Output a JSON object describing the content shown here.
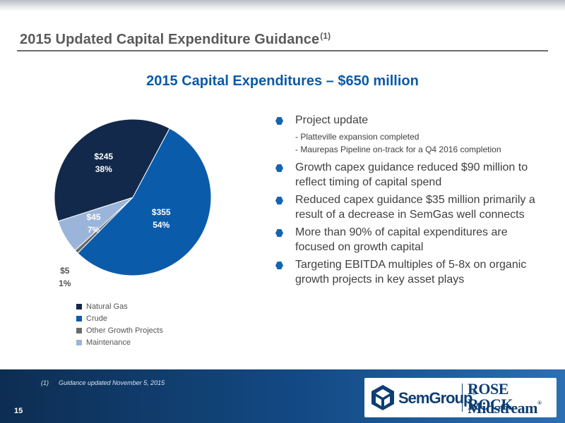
{
  "slide": {
    "title": "2015 Updated Capital Expenditure Guidance",
    "title_footnote_ref": "(1)",
    "subtitle": "2015 Capital Expenditures – $650 million",
    "page_number": "15"
  },
  "chart_data": {
    "type": "pie",
    "slices": [
      {
        "name": "Crude",
        "amount": "$355",
        "percent": "54%",
        "value": 355,
        "color": "#0b5bab",
        "label_color": "#ffffff"
      },
      {
        "name": "Other Growth Projects",
        "amount": "$5",
        "percent": "1%",
        "value": 5,
        "color": "#6b6b6b",
        "label_color": "#555555"
      },
      {
        "name": "Maintenance",
        "amount": "$45",
        "percent": "7%",
        "value": 45,
        "color": "#9ab5d9",
        "label_color": "#ffffff"
      },
      {
        "name": "Natural Gas",
        "amount": "$245",
        "percent": "38%",
        "value": 245,
        "color": "#13294b",
        "label_color": "#ffffff"
      }
    ],
    "legend": [
      {
        "name": "Natural Gas",
        "color": "#13294b"
      },
      {
        "name": "Crude",
        "color": "#0b5bab"
      },
      {
        "name": "Other Growth Projects",
        "color": "#6b6b6b"
      },
      {
        "name": "Maintenance",
        "color": "#9ab5d9"
      }
    ],
    "legend_position": "bottom-left"
  },
  "bullets": [
    {
      "text": "Project update",
      "subs": [
        "- Platteville expansion completed",
        "- Maurepas Pipeline on-track for a Q4 2016 completion"
      ]
    },
    {
      "text": "Growth capex guidance reduced $90 million to reflect timing of capital spend",
      "subs": []
    },
    {
      "text": "Reduced capex guidance $35 million primarily a result of a decrease in SemGas well connects",
      "subs": []
    },
    {
      "text": "More than 90% of capital expenditures are focused on growth capital",
      "subs": []
    },
    {
      "text": "Targeting EBITDA multiples of 5-8x on organic growth projects in key asset plays",
      "subs": []
    }
  ],
  "footer": {
    "footnote_ref": "(1)",
    "footnote_text": "Guidance updated November 5, 2015",
    "logo_semgroup": "SemGroup",
    "logo_semgroup_mark": "®",
    "logo_roserock_top": "ROSE ROCK",
    "logo_roserock_bottom": "Midstream",
    "logo_roserock_mark": "®"
  }
}
